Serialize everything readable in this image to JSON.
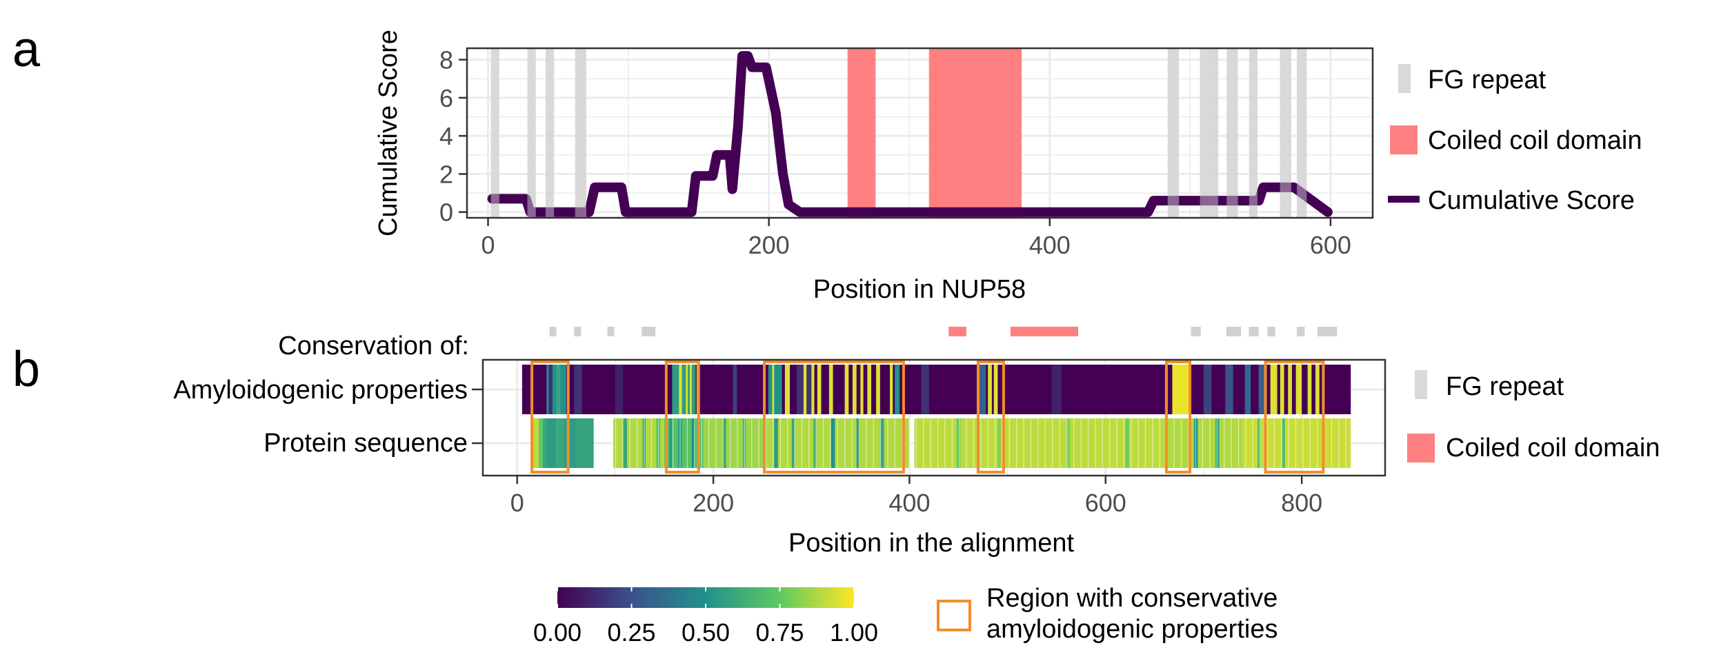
{
  "colors": {
    "fg": "#cccccc",
    "coiled": "#ff8080",
    "score": "#440154",
    "region": "#f28e2b",
    "grid": "#ebebeb",
    "viridis": [
      "#440154",
      "#3b528b",
      "#21918c",
      "#5ec962",
      "#fde725"
    ]
  },
  "chart_data": [
    {
      "type": "line",
      "panel": "a",
      "xlabel": "Position in NUP58",
      "ylabel": "Cumulative Score",
      "xlim": [
        -15,
        630
      ],
      "ylim": [
        -0.3,
        8.6
      ],
      "x_ticks": [
        "0",
        "200",
        "400",
        "600"
      ],
      "x_tick_values": [
        0,
        200,
        400,
        600
      ],
      "y_ticks": [
        "0",
        "2",
        "4",
        "6",
        "8"
      ],
      "y_tick_values": [
        0,
        2,
        4,
        6,
        8
      ],
      "fg_repeats": [
        [
          2,
          8
        ],
        [
          28,
          34
        ],
        [
          41,
          47
        ],
        [
          62,
          70
        ],
        [
          484,
          492
        ],
        [
          507,
          520
        ],
        [
          526,
          534
        ],
        [
          542,
          548
        ],
        [
          564,
          572
        ],
        [
          576,
          583
        ]
      ],
      "coiled_coil": [
        [
          256,
          276
        ],
        [
          314,
          380
        ]
      ],
      "series": [
        {
          "name": "Cumulative Score",
          "x": [
            3,
            27,
            30,
            72,
            76,
            95,
            98,
            145,
            148,
            160,
            163,
            172,
            174,
            178,
            181,
            185,
            188,
            198,
            205,
            210,
            214,
            222,
            470,
            474,
            500,
            549,
            552,
            574,
            598
          ],
          "y": [
            0.7,
            0.7,
            0,
            0,
            1.3,
            1.3,
            0,
            0,
            1.9,
            1.9,
            3.0,
            3.0,
            1.2,
            4.5,
            8.2,
            8.2,
            7.6,
            7.6,
            5.2,
            2.0,
            0.4,
            0,
            0,
            0.6,
            0.6,
            0.6,
            1.3,
            1.3,
            0
          ]
        }
      ],
      "legend": [
        {
          "label": "FG repeat",
          "kind": "fg"
        },
        {
          "label": "Coiled coil domain",
          "kind": "coiled"
        },
        {
          "label": "Cumulative Score",
          "kind": "score"
        }
      ]
    },
    {
      "type": "heatmap",
      "panel": "b",
      "xlabel": "Position in the alignment",
      "xlim": [
        -35,
        885
      ],
      "x_ticks": [
        "0",
        "200",
        "400",
        "600",
        "800"
      ],
      "x_tick_values": [
        0,
        200,
        400,
        600,
        800
      ],
      "conservation_label": "Conservation of:",
      "rows": [
        "Amyloidogenic properties",
        "Protein sequence"
      ],
      "fg_marks": [
        [
          33,
          40
        ],
        [
          58,
          65
        ],
        [
          92,
          99
        ],
        [
          127,
          141
        ],
        [
          687,
          697
        ],
        [
          723,
          738
        ],
        [
          746,
          756
        ],
        [
          765,
          773
        ],
        [
          795,
          803
        ],
        [
          816,
          836
        ]
      ],
      "coiled_marks": [
        [
          440,
          458
        ],
        [
          503,
          572
        ]
      ],
      "amyloid": {
        "extent": [
          5,
          850
        ],
        "base": 0.0,
        "segments": [
          [
            30,
            50,
            0.5
          ],
          [
            32,
            36,
            0.15
          ],
          [
            40,
            44,
            0.6
          ],
          [
            58,
            66,
            0.15
          ],
          [
            100,
            108,
            0.1
          ],
          [
            158,
            182,
            0.55
          ],
          [
            165,
            168,
            0.95
          ],
          [
            172,
            174,
            0.95
          ],
          [
            176,
            178,
            0.95
          ],
          [
            183,
            185,
            0.95
          ],
          [
            220,
            224,
            0.2
          ],
          [
            256,
            270,
            0.5
          ],
          [
            260,
            262,
            0.95
          ],
          [
            273,
            278,
            0.95
          ],
          [
            285,
            300,
            0.15
          ],
          [
            292,
            295,
            0.95
          ],
          [
            300,
            303,
            0.95
          ],
          [
            306,
            310,
            0.95
          ],
          [
            318,
            322,
            0.95
          ],
          [
            334,
            338,
            0.95
          ],
          [
            342,
            346,
            0.95
          ],
          [
            350,
            353,
            0.95
          ],
          [
            357,
            361,
            0.95
          ],
          [
            366,
            370,
            0.95
          ],
          [
            380,
            383,
            0.95
          ],
          [
            385,
            390,
            0.5
          ],
          [
            412,
            420,
            0.15
          ],
          [
            470,
            478,
            0.3
          ],
          [
            480,
            484,
            0.95
          ],
          [
            486,
            490,
            0.95
          ],
          [
            545,
            555,
            0.1
          ],
          [
            668,
            686,
            0.97
          ],
          [
            700,
            708,
            0.2
          ],
          [
            722,
            730,
            0.25
          ],
          [
            742,
            748,
            0.35
          ],
          [
            756,
            762,
            0.3
          ],
          [
            768,
            775,
            0.95
          ],
          [
            778,
            782,
            0.95
          ],
          [
            786,
            790,
            0.95
          ],
          [
            794,
            800,
            0.95
          ],
          [
            806,
            810,
            0.95
          ],
          [
            814,
            818,
            0.95
          ]
        ]
      },
      "sequence": {
        "segments": [
          [
            15,
            22,
            0.9
          ],
          [
            22,
            26,
            0.75
          ],
          [
            26,
            30,
            0.6
          ],
          [
            30,
            40,
            0.55
          ],
          [
            40,
            48,
            0.6
          ],
          [
            48,
            60,
            0.55
          ],
          [
            60,
            78,
            0.58
          ],
          [
            98,
            150,
            0.88
          ],
          [
            108,
            112,
            0.6
          ],
          [
            128,
            131,
            0.6
          ],
          [
            142,
            146,
            0.7
          ],
          [
            150,
            190,
            0.72
          ],
          [
            155,
            158,
            0.55
          ],
          [
            164,
            168,
            0.55
          ],
          [
            178,
            181,
            0.5
          ],
          [
            190,
            255,
            0.85
          ],
          [
            210,
            213,
            0.6
          ],
          [
            230,
            233,
            0.65
          ],
          [
            255,
            400,
            0.88
          ],
          [
            262,
            266,
            0.55
          ],
          [
            280,
            283,
            0.6
          ],
          [
            302,
            305,
            0.65
          ],
          [
            320,
            324,
            0.5
          ],
          [
            346,
            349,
            0.55
          ],
          [
            370,
            374,
            0.6
          ],
          [
            392,
            395,
            0.6
          ],
          [
            405,
            660,
            0.9
          ],
          [
            448,
            452,
            0.75
          ],
          [
            490,
            493,
            0.8
          ],
          [
            560,
            564,
            0.8
          ],
          [
            620,
            624,
            0.78
          ],
          [
            660,
            740,
            0.88
          ],
          [
            690,
            694,
            0.5
          ],
          [
            712,
            716,
            0.6
          ],
          [
            740,
            850,
            0.92
          ],
          [
            755,
            758,
            0.7
          ],
          [
            780,
            783,
            0.7
          ]
        ]
      },
      "regions": [
        [
          15,
          52
        ],
        [
          152,
          185
        ],
        [
          252,
          394
        ],
        [
          470,
          496
        ],
        [
          662,
          686
        ],
        [
          763,
          822
        ]
      ],
      "legend": [
        {
          "label": "FG repeat",
          "kind": "fg"
        },
        {
          "label": "Coiled coil domain",
          "kind": "coiled"
        }
      ],
      "colorbar": {
        "ticks": [
          "0.00",
          "0.25",
          "0.50",
          "0.75",
          "1.00"
        ],
        "tick_values": [
          0,
          0.25,
          0.5,
          0.75,
          1.0
        ]
      },
      "region_legend": [
        "Region with conservative",
        "amyloidogenic properties"
      ]
    }
  ],
  "panel_letters": {
    "a": "a",
    "b": "b"
  }
}
